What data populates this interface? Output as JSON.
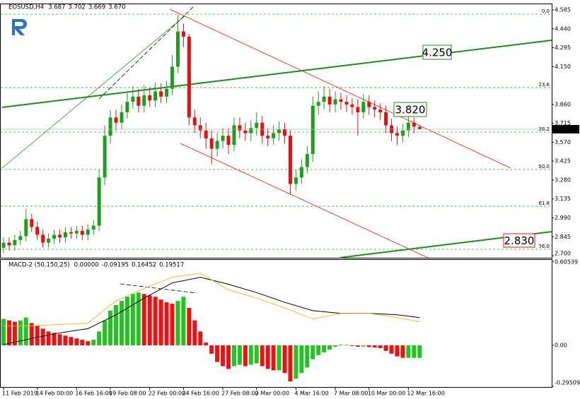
{
  "chart_data": [
    {
      "type": "candlestick",
      "title": "EOSUSD,H4",
      "header_values": [
        "3.687",
        "3.702",
        "3.669",
        "3.670"
      ],
      "categories": [
        "11 Feb 2019",
        null,
        null,
        null,
        null,
        null,
        "14 Feb 00:00",
        null,
        null,
        null,
        null,
        null,
        null,
        "16 Feb 16:00",
        null,
        null,
        null,
        null,
        null,
        "19 Feb 08:00",
        null,
        null,
        null,
        null,
        null,
        null,
        "22 Feb 00:00",
        null,
        null,
        null,
        null,
        null,
        "24 Feb 16:00",
        null,
        null,
        null,
        null,
        null,
        null,
        "27 Feb 08:00",
        null,
        null,
        null,
        null,
        null,
        "2 Mar 00:00",
        null,
        null,
        null,
        null,
        null,
        null,
        "4 Mar 16:00",
        null,
        null,
        null,
        null,
        null,
        null,
        "7 Mar 08:00",
        null,
        null,
        null,
        null,
        null,
        "10 Mar 00:00",
        null,
        null,
        null,
        null,
        null,
        null,
        "12 Mar 16:00",
        null,
        null
      ],
      "open": [
        2.76,
        2.8,
        2.78,
        2.82,
        2.85,
        2.98,
        2.92,
        2.86,
        2.8,
        2.83,
        2.86,
        2.84,
        2.88,
        2.87,
        2.89,
        2.86,
        2.9,
        2.93,
        3.3,
        3.62,
        3.76,
        3.72,
        3.8,
        3.88,
        3.92,
        3.85,
        3.93,
        3.89,
        3.96,
        3.92,
        3.98,
        4.15,
        4.42,
        4.38,
        3.76,
        3.7,
        3.66,
        3.6,
        3.52,
        3.58,
        3.62,
        3.55,
        3.7,
        3.66,
        3.64,
        3.68,
        3.72,
        3.62,
        3.6,
        3.64,
        3.67,
        3.62,
        3.25,
        3.3,
        3.38,
        3.48,
        3.85,
        3.88,
        3.92,
        3.86,
        3.9,
        3.88,
        3.86,
        3.84,
        3.8,
        3.88,
        3.84,
        3.82,
        3.8,
        3.7,
        3.64,
        3.62,
        3.66,
        3.72,
        3.687
      ],
      "high": [
        2.84,
        2.84,
        2.86,
        2.89,
        3.06,
        3.02,
        2.96,
        2.9,
        2.87,
        2.9,
        2.9,
        2.92,
        2.92,
        2.93,
        2.93,
        2.94,
        2.97,
        3.36,
        3.7,
        3.82,
        3.82,
        3.86,
        3.95,
        4.0,
        3.98,
        4.01,
        3.99,
        4.03,
        4.02,
        4.04,
        4.24,
        4.55,
        4.48,
        4.4,
        3.82,
        3.76,
        3.72,
        3.66,
        3.64,
        3.68,
        3.68,
        3.76,
        3.76,
        3.72,
        3.74,
        3.8,
        3.77,
        3.68,
        3.7,
        3.73,
        3.72,
        3.66,
        3.36,
        3.44,
        3.54,
        3.92,
        3.96,
        4.0,
        3.98,
        3.96,
        3.95,
        3.93,
        3.91,
        3.9,
        3.94,
        3.93,
        3.89,
        3.87,
        3.85,
        3.75,
        3.69,
        3.71,
        3.77,
        3.76,
        3.702
      ],
      "low": [
        2.72,
        2.74,
        2.74,
        2.78,
        2.81,
        2.88,
        2.82,
        2.76,
        2.76,
        2.79,
        2.8,
        2.8,
        2.83,
        2.83,
        2.82,
        2.82,
        2.86,
        2.89,
        3.24,
        3.56,
        3.66,
        3.67,
        3.75,
        3.83,
        3.8,
        3.8,
        3.84,
        3.84,
        3.87,
        3.87,
        3.93,
        4.1,
        4.3,
        3.7,
        3.64,
        3.6,
        3.52,
        3.4,
        3.46,
        3.52,
        3.48,
        3.5,
        3.6,
        3.58,
        3.58,
        3.62,
        3.56,
        3.54,
        3.55,
        3.58,
        3.56,
        3.17,
        3.2,
        3.25,
        3.33,
        3.42,
        3.78,
        3.82,
        3.8,
        3.8,
        3.82,
        3.8,
        3.78,
        3.62,
        3.75,
        3.78,
        3.76,
        3.74,
        3.64,
        3.58,
        3.55,
        3.57,
        3.61,
        3.64,
        3.669
      ],
      "close": [
        2.8,
        2.78,
        2.82,
        2.85,
        2.98,
        2.92,
        2.86,
        2.8,
        2.83,
        2.86,
        2.84,
        2.88,
        2.87,
        2.89,
        2.86,
        2.9,
        2.93,
        3.3,
        3.62,
        3.76,
        3.72,
        3.8,
        3.88,
        3.92,
        3.85,
        3.93,
        3.89,
        3.96,
        3.92,
        3.98,
        4.15,
        4.42,
        4.38,
        3.76,
        3.7,
        3.66,
        3.6,
        3.52,
        3.58,
        3.62,
        3.55,
        3.7,
        3.66,
        3.64,
        3.68,
        3.72,
        3.62,
        3.6,
        3.64,
        3.67,
        3.62,
        3.25,
        3.3,
        3.38,
        3.48,
        3.85,
        3.88,
        3.92,
        3.86,
        3.9,
        3.88,
        3.86,
        3.84,
        3.8,
        3.88,
        3.84,
        3.82,
        3.8,
        3.7,
        3.64,
        3.62,
        3.66,
        3.72,
        3.69,
        3.67
      ],
      "up_color": "#1e9e1e",
      "down_color": "#e41010",
      "ylim": [
        2.684,
        4.634
      ],
      "yticks": [
        4.585,
        {
          "value": 4.44,
          "label": "4.440"
        },
        4.295,
        {
          "value": 4.15,
          "label": "4.150"
        },
        {
          "value": 3.86,
          "label": "3.860"
        },
        3.715,
        {
          "value": 3.57,
          "label": "3.570"
        },
        3.425,
        {
          "value": 3.28,
          "label": "3.280"
        },
        3.135,
        {
          "value": 2.99,
          "label": "2.990"
        },
        2.845,
        {
          "value": 2.7,
          "label": "2.700"
        }
      ],
      "last_price": {
        "value": 3.67,
        "label": "3.670"
      },
      "fib_levels": [
        {
          "value": 4.552,
          "label": "0.0"
        },
        {
          "value": 3.989,
          "label": "23.6"
        },
        {
          "value": 3.648,
          "label": "38.2"
        },
        {
          "value": 3.361,
          "label": "50.0"
        },
        {
          "value": 3.079,
          "label": "61.8"
        },
        {
          "value": 2.749,
          "label": "76.0"
        }
      ],
      "fib_color": "#2ea52e",
      "annotations": [
        {
          "label": "4.250",
          "color": "#1e8c1e"
        },
        {
          "label": "3.820",
          "color": "#1e8c1e"
        },
        {
          "label": "2.830",
          "color": "#e41010"
        }
      ]
    },
    {
      "type": "macd",
      "title": "MACD-2 (50,150,25)",
      "header_values": [
        "0.00000",
        "-0.09195",
        "0.16452",
        "0.19517"
      ],
      "values": [
        0.19,
        0.18,
        0.17,
        0.18,
        0.2,
        0.16,
        0.14,
        0.12,
        0.1,
        0.09,
        0.08,
        0.07,
        0.06,
        0.05,
        0.04,
        0.03,
        0.04,
        0.1,
        0.18,
        0.25,
        0.29,
        0.32,
        0.35,
        0.37,
        0.38,
        0.37,
        0.36,
        0.35,
        0.33,
        0.31,
        0.3,
        0.32,
        0.35,
        0.27,
        0.18,
        0.1,
        0.02,
        -0.06,
        -0.12,
        -0.15,
        -0.17,
        -0.15,
        -0.14,
        -0.15,
        -0.14,
        -0.13,
        -0.15,
        -0.17,
        -0.18,
        -0.18,
        -0.2,
        -0.26,
        -0.24,
        -0.2,
        -0.16,
        -0.1,
        -0.07,
        -0.05,
        -0.03,
        -0.01,
        0.005,
        0.003,
        -0.005,
        -0.01,
        -0.008,
        -0.012,
        -0.015,
        -0.02,
        -0.04,
        -0.06,
        -0.08,
        -0.09,
        -0.09,
        -0.09,
        -0.09
      ],
      "up_color": "#22c322",
      "down_color": "#ee1111",
      "line_x": [
        0,
        5,
        10,
        15,
        20,
        25,
        30,
        35,
        40,
        45,
        50,
        55,
        60,
        65,
        70,
        74
      ],
      "lines": [
        {
          "color": "#000000",
          "values": [
            0.005,
            0.05,
            0.09,
            0.12,
            0.22,
            0.34,
            0.45,
            0.49,
            0.44,
            0.38,
            0.31,
            0.25,
            0.23,
            0.23,
            0.22,
            0.2
          ]
        },
        {
          "color": "#f0b82a",
          "values": [
            0.14,
            0.14,
            0.15,
            0.16,
            0.32,
            0.41,
            0.49,
            0.52,
            0.4,
            0.34,
            0.27,
            0.19,
            0.23,
            0.23,
            0.2,
            0.17
          ]
        }
      ],
      "ylim": [
        -0.3,
        0.6206
      ],
      "yticks": [
        0.60539,
        {
          "value": 0,
          "label": "0.00"
        },
        -0.29509
      ]
    }
  ]
}
